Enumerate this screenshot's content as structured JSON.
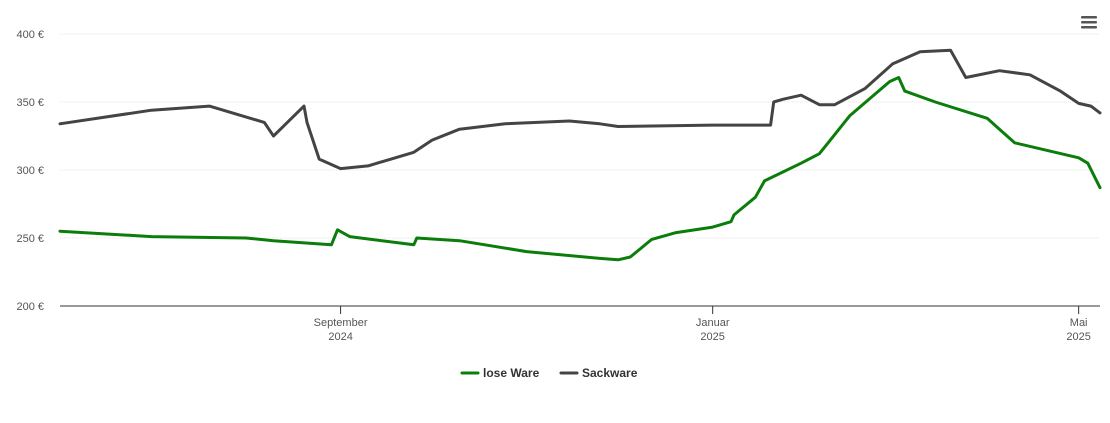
{
  "chart_data": {
    "type": "line",
    "title": "",
    "xlabel": "",
    "ylabel": "",
    "ylim": [
      200,
      400
    ],
    "xlim": [
      "2024-06-01",
      "2025-05-08"
    ],
    "y_ticks": [
      {
        "value": 200,
        "label": "200 €"
      },
      {
        "value": 250,
        "label": "250 €"
      },
      {
        "value": 300,
        "label": "300 €"
      },
      {
        "value": 350,
        "label": "350 €"
      },
      {
        "value": 400,
        "label": "400 €"
      }
    ],
    "x_ticks": [
      {
        "date": "2024-09-01",
        "month": "September",
        "year": "2024"
      },
      {
        "date": "2025-01-01",
        "month": "Januar",
        "year": "2025"
      },
      {
        "date": "2025-05-01",
        "month": "Mai",
        "year": "2025"
      }
    ],
    "grid": true,
    "legend_position": "bottom-center",
    "series": [
      {
        "name": "lose Ware",
        "color": "#0a7d0a",
        "points": [
          [
            "2024-06-01",
            255
          ],
          [
            "2024-07-01",
            251
          ],
          [
            "2024-08-01",
            250
          ],
          [
            "2024-08-10",
            248
          ],
          [
            "2024-08-29",
            245
          ],
          [
            "2024-08-31",
            256
          ],
          [
            "2024-09-04",
            251
          ],
          [
            "2024-09-25",
            245
          ],
          [
            "2024-09-26",
            250
          ],
          [
            "2024-10-10",
            248
          ],
          [
            "2024-11-01",
            240
          ],
          [
            "2024-11-25",
            235
          ],
          [
            "2024-12-01",
            234
          ],
          [
            "2024-12-05",
            236
          ],
          [
            "2024-12-12",
            249
          ],
          [
            "2024-12-20",
            254
          ],
          [
            "2025-01-01",
            258
          ],
          [
            "2025-01-07",
            262
          ],
          [
            "2025-01-08",
            267
          ],
          [
            "2025-01-15",
            280
          ],
          [
            "2025-01-18",
            292
          ],
          [
            "2025-01-30",
            305
          ],
          [
            "2025-02-05",
            312
          ],
          [
            "2025-02-15",
            340
          ],
          [
            "2025-02-28",
            365
          ],
          [
            "2025-03-03",
            368
          ],
          [
            "2025-03-05",
            358
          ],
          [
            "2025-03-15",
            350
          ],
          [
            "2025-04-01",
            338
          ],
          [
            "2025-04-06",
            328
          ],
          [
            "2025-04-10",
            320
          ],
          [
            "2025-05-01",
            309
          ],
          [
            "2025-05-04",
            305
          ],
          [
            "2025-05-08",
            287
          ]
        ]
      },
      {
        "name": "Sackware",
        "color": "#444444",
        "points": [
          [
            "2024-06-01",
            334
          ],
          [
            "2024-07-01",
            344
          ],
          [
            "2024-07-20",
            347
          ],
          [
            "2024-08-20",
            347
          ],
          [
            "2024-08-21",
            335
          ],
          [
            "2024-08-07",
            335
          ],
          [
            "2024-08-10",
            325
          ],
          [
            "2024-08-25",
            308
          ],
          [
            "2024-09-01",
            301
          ],
          [
            "2024-09-10",
            303
          ],
          [
            "2024-09-25",
            313
          ],
          [
            "2024-10-01",
            322
          ],
          [
            "2024-10-10",
            330
          ],
          [
            "2024-10-25",
            334
          ],
          [
            "2024-11-15",
            336
          ],
          [
            "2024-11-25",
            334
          ],
          [
            "2024-12-01",
            332
          ],
          [
            "2025-01-01",
            333
          ],
          [
            "2025-01-20",
            333
          ],
          [
            "2025-01-21",
            350
          ],
          [
            "2025-01-24",
            352
          ],
          [
            "2025-01-30",
            355
          ],
          [
            "2025-02-05",
            348
          ],
          [
            "2025-02-10",
            348
          ],
          [
            "2025-02-20",
            360
          ],
          [
            "2025-03-01",
            378
          ],
          [
            "2025-03-10",
            387
          ],
          [
            "2025-03-20",
            388
          ],
          [
            "2025-03-25",
            368
          ],
          [
            "2025-04-05",
            373
          ],
          [
            "2025-04-15",
            370
          ],
          [
            "2025-04-25",
            358
          ],
          [
            "2025-05-01",
            349
          ],
          [
            "2025-05-05",
            347
          ],
          [
            "2025-05-08",
            342
          ]
        ]
      }
    ]
  },
  "menu": {
    "icon": "hamburger-menu-icon"
  }
}
